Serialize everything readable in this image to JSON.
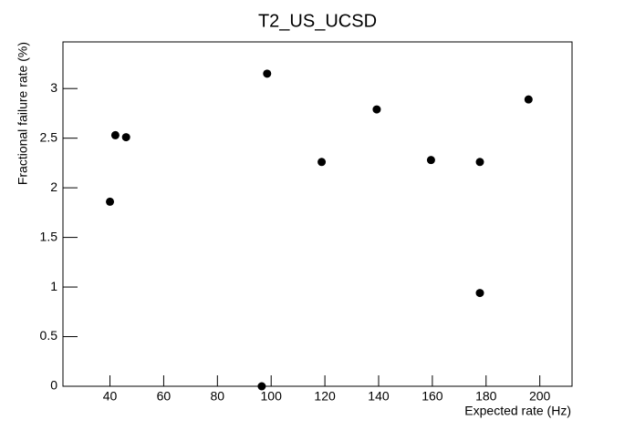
{
  "chart_data": {
    "type": "scatter",
    "title": "T2_US_UCSD",
    "x_label": "Expected rate (Hz)",
    "y_label": "Fractional failure rate (%)",
    "series": [
      {
        "color": "#000000",
        "x": [
          40,
          42,
          46,
          96.5,
          98.5,
          118.8,
          139.3,
          159.5,
          177.7,
          177.7,
          195.8
        ],
        "values": [
          1.86,
          2.53,
          2.51,
          0,
          3.15,
          2.26,
          2.79,
          2.28,
          2.26,
          0.94,
          2.89
        ]
      }
    ],
    "xlim": [
      22.5,
      212
    ],
    "xticks": [
      40,
      60,
      80,
      100,
      120,
      140,
      160,
      180,
      200
    ],
    "ylim": [
      0,
      3.47
    ],
    "yticks": [
      0,
      0.5,
      1,
      1.5,
      2,
      2.5,
      3
    ]
  }
}
